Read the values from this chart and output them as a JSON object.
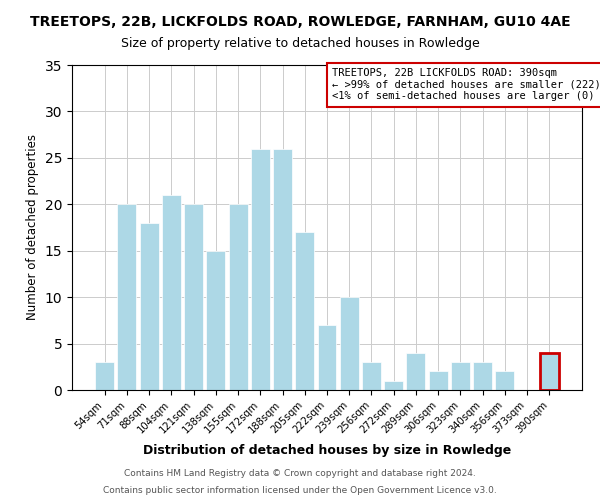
{
  "title": "TREETOPS, 22B, LICKFOLDS ROAD, ROWLEDGE, FARNHAM, GU10 4AE",
  "subtitle": "Size of property relative to detached houses in Rowledge",
  "xlabel": "Distribution of detached houses by size in Rowledge",
  "ylabel": "Number of detached properties",
  "bar_labels": [
    "54sqm",
    "71sqm",
    "88sqm",
    "104sqm",
    "121sqm",
    "138sqm",
    "155sqm",
    "172sqm",
    "188sqm",
    "205sqm",
    "222sqm",
    "239sqm",
    "256sqm",
    "272sqm",
    "289sqm",
    "306sqm",
    "323sqm",
    "340sqm",
    "356sqm",
    "373sqm",
    "390sqm"
  ],
  "bar_heights": [
    3,
    20,
    18,
    21,
    20,
    15,
    20,
    26,
    26,
    17,
    7,
    10,
    3,
    1,
    4,
    2,
    3,
    3,
    2,
    0,
    4
  ],
  "bar_color": "#add8e6",
  "highlight_index": 20,
  "ylim": [
    0,
    35
  ],
  "yticks": [
    0,
    5,
    10,
    15,
    20,
    25,
    30,
    35
  ],
  "annotation_box_text": "TREETOPS, 22B LICKFOLDS ROAD: 390sqm\n← >99% of detached houses are smaller (222)\n<1% of semi-detached houses are larger (0) →",
  "annotation_box_color": "#ffffff",
  "annotation_box_edge_color": "#cc0000",
  "footnote1": "Contains HM Land Registry data © Crown copyright and database right 2024.",
  "footnote2": "Contains public sector information licensed under the Open Government Licence v3.0."
}
